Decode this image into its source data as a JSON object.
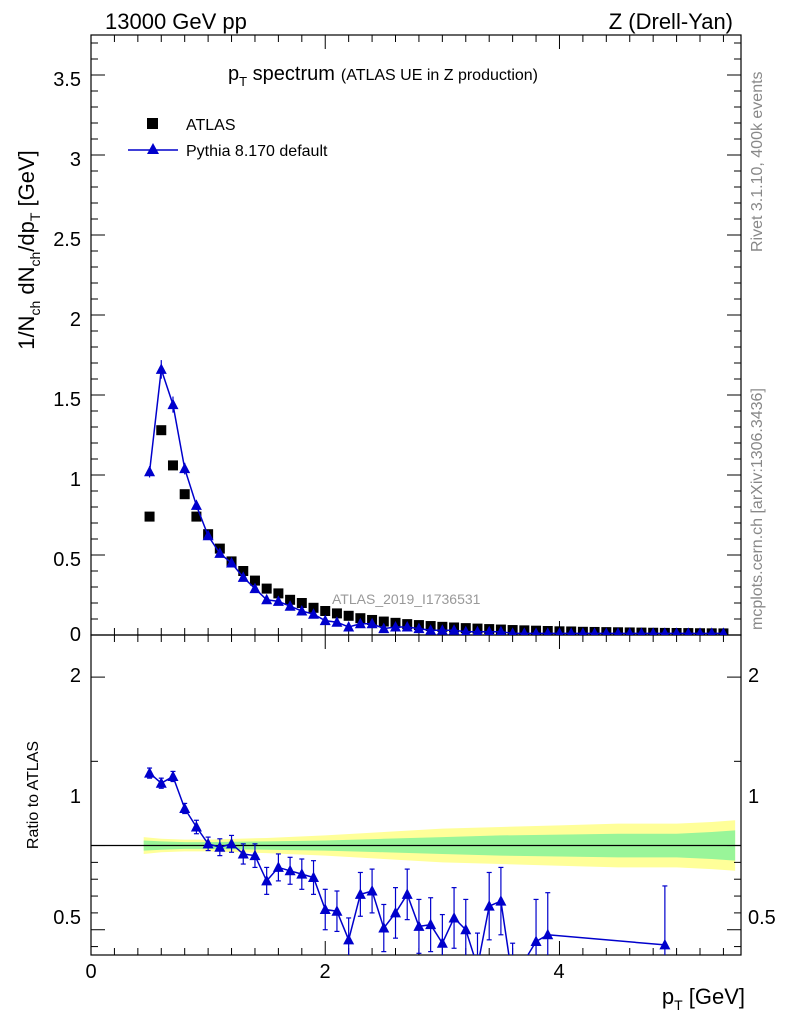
{
  "header": {
    "left": "13000 GeV pp",
    "right": "Z (Drell-Yan)"
  },
  "title": {
    "main_p": "p",
    "main_sub": "T",
    "main_rest": " spectrum",
    "aux": "(ATLAS UE in Z production)"
  },
  "side_labels": {
    "rivet": "Rivet 3.1.10,  400k events",
    "mcplots": "mcplots.cern.ch [arXiv:1306.3436]"
  },
  "watermark": "ATLAS_2019_I1736531",
  "legend": {
    "data_label": "ATLAS",
    "mc_label": "Pythia 8.170 default"
  },
  "colors": {
    "data": "#000000",
    "mc": "#0000cc",
    "band_inner": "#99f599",
    "band_outer": "#ffff99",
    "watermark": "#999999"
  },
  "axes": {
    "ylabel_main_parts": [
      "1/N",
      "ch",
      " dN",
      "ch",
      "/dp",
      "T",
      " [GeV]"
    ],
    "ylabel_ratio": "Ratio to ATLAS",
    "xlabel": "p",
    "xlabel_sub": "T",
    "xlabel_unit": " [GeV]",
    "x_ticks": [
      "0",
      "2",
      "4"
    ],
    "y_main_ticks": [
      "0",
      "0.5",
      "1",
      "1.5",
      "2",
      "2.5",
      "3",
      "3.5"
    ],
    "y_ratio_ticks": [
      "0.5",
      "1",
      "2"
    ]
  },
  "chart_data": [
    {
      "type": "scatter",
      "panel": "main",
      "xlim": [
        0,
        5.55
      ],
      "ylim": [
        0,
        3.75
      ],
      "x": [
        0.5,
        0.6,
        0.7,
        0.8,
        0.9,
        1.0,
        1.1,
        1.2,
        1.3,
        1.4,
        1.5,
        1.6,
        1.7,
        1.8,
        1.9,
        2.0,
        2.1,
        2.2,
        2.3,
        2.4,
        2.5,
        2.6,
        2.7,
        2.8,
        2.9,
        3.0,
        3.1,
        3.2,
        3.3,
        3.4,
        3.5,
        3.6,
        3.7,
        3.8,
        3.9,
        4.0,
        4.1,
        4.2,
        4.3,
        4.4,
        4.5,
        4.6,
        4.7,
        4.8,
        4.9,
        5.0,
        5.1,
        5.2,
        5.3,
        5.4
      ],
      "series": [
        {
          "name": "ATLAS",
          "values": [
            0.74,
            1.28,
            1.06,
            0.88,
            0.74,
            0.63,
            0.54,
            0.46,
            0.4,
            0.34,
            0.29,
            0.26,
            0.22,
            0.2,
            0.17,
            0.15,
            0.135,
            0.12,
            0.105,
            0.094,
            0.084,
            0.076,
            0.068,
            0.062,
            0.056,
            0.051,
            0.047,
            0.043,
            0.04,
            0.037,
            0.034,
            0.031,
            0.029,
            0.027,
            0.025,
            0.023,
            0.022,
            0.02,
            0.019,
            0.018,
            0.017,
            0.016,
            0.015,
            0.014,
            0.013,
            0.0125,
            0.012,
            0.011,
            0.0105,
            0.01
          ]
        },
        {
          "name": "Pythia 8.170 default",
          "values": [
            1.02,
            1.66,
            1.44,
            1.04,
            0.81,
            0.62,
            0.51,
            0.45,
            0.36,
            0.29,
            0.22,
            0.21,
            0.18,
            0.15,
            0.13,
            0.09,
            0.08,
            0.05,
            0.07,
            0.07,
            0.04,
            0.05,
            0.05,
            0.04,
            0.03,
            0.03,
            0.03,
            0.02,
            0.02,
            0.02,
            0.02,
            0.01,
            0.01,
            0.01,
            0.01,
            0.01,
            0.01,
            0.01,
            0.01,
            0.01,
            0.01,
            0.01,
            0.01,
            0.01,
            0.01,
            0.01,
            0.01,
            0.01,
            0.01,
            0.01
          ]
        }
      ]
    },
    {
      "type": "line",
      "panel": "ratio",
      "xlim": [
        0,
        5.55
      ],
      "ylim": [
        0.35,
        2.25
      ],
      "reference": 1,
      "x": [
        0.5,
        0.6,
        0.7,
        0.8,
        0.9,
        1.0,
        1.1,
        1.2,
        1.3,
        1.4,
        1.5,
        1.6,
        1.7,
        1.8,
        1.9,
        2.0,
        2.1,
        2.2,
        2.3,
        2.4,
        2.5,
        2.6,
        2.7,
        2.8,
        2.9,
        3.0,
        3.1,
        3.2,
        3.3,
        3.4,
        3.5,
        3.6,
        3.8,
        3.9,
        4.9
      ],
      "series": [
        {
          "name": "Pythia 8.170 default",
          "values": [
            1.43,
            1.37,
            1.41,
            1.22,
            1.11,
            1.01,
            0.99,
            1.01,
            0.95,
            0.94,
            0.79,
            0.87,
            0.85,
            0.83,
            0.81,
            0.62,
            0.61,
            0.44,
            0.71,
            0.73,
            0.51,
            0.6,
            0.71,
            0.52,
            0.53,
            0.42,
            0.57,
            0.5,
            0.28,
            0.64,
            0.67,
            0.2,
            0.43,
            0.47,
            0.41
          ],
          "errors": [
            0.03,
            0.03,
            0.03,
            0.03,
            0.04,
            0.04,
            0.05,
            0.05,
            0.06,
            0.07,
            0.08,
            0.08,
            0.08,
            0.09,
            0.1,
            0.12,
            0.12,
            0.13,
            0.13,
            0.13,
            0.14,
            0.15,
            0.15,
            0.16,
            0.16,
            0.17,
            0.18,
            0.18,
            0.2,
            0.2,
            0.2,
            0.22,
            0.25,
            0.25,
            0.35
          ]
        }
      ],
      "band_x": [
        0.45,
        0.6,
        0.8,
        1.0,
        1.5,
        2.0,
        2.5,
        3.0,
        3.5,
        4.0,
        4.5,
        5.0,
        5.3,
        5.5
      ],
      "band_inner_halfwidth": [
        0.03,
        0.025,
        0.02,
        0.02,
        0.025,
        0.03,
        0.04,
        0.05,
        0.06,
        0.065,
        0.07,
        0.07,
        0.08,
        0.09
      ],
      "band_outer_halfwidth": [
        0.05,
        0.04,
        0.035,
        0.035,
        0.045,
        0.06,
        0.08,
        0.1,
        0.11,
        0.12,
        0.13,
        0.13,
        0.14,
        0.15
      ]
    }
  ]
}
